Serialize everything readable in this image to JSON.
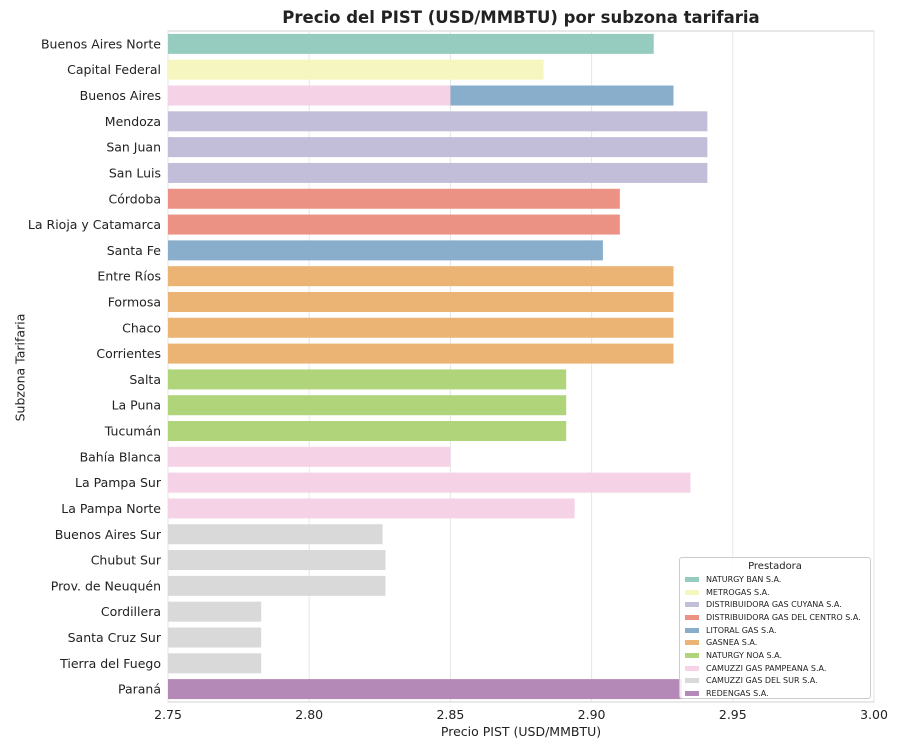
{
  "chart_data": {
    "type": "bar",
    "orientation": "horizontal",
    "title": "Precio del PIST (USD/MMBTU) por subzona tarifaria",
    "xlabel": "Precio PIST (USD/MMBTU)",
    "ylabel": "Subzona Tarifaria",
    "xlim": [
      2.75,
      3.0
    ],
    "xticks": [
      "2.75",
      "2.80",
      "2.85",
      "2.90",
      "2.95",
      "3.00"
    ],
    "grid": true,
    "legend_title": "Prestadora",
    "legend_position": "bottom-right",
    "categories": [
      "Buenos Aires Norte",
      "Capital Federal",
      "Buenos Aires",
      "Mendoza",
      "San Juan",
      "San Luis",
      "Córdoba",
      "La Rioja y Catamarca",
      "Santa Fe",
      "Entre Ríos",
      "Formosa",
      "Chaco",
      "Corrientes",
      "Salta",
      "La Puna",
      "Tucumán",
      "Bahía Blanca",
      "La Pampa Sur",
      "La Pampa Norte",
      "Buenos Aires Sur",
      "Chubut Sur",
      "Prov. de Neuquén",
      "Cordillera",
      "Santa Cruz Sur",
      "Tierra del Fuego",
      "Paraná"
    ],
    "series": [
      {
        "name": "NATURGY BAN S.A.",
        "color": "#96cbc0",
        "points": [
          {
            "category": "Buenos Aires Norte",
            "value": 2.922
          }
        ]
      },
      {
        "name": "METROGAS S.A.",
        "color": "#f6f7c0",
        "points": [
          {
            "category": "Capital Federal",
            "value": 2.883
          }
        ]
      },
      {
        "name": "DISTRIBUIDORA GAS CUYANA S.A.",
        "color": "#c2bdd8",
        "points": [
          {
            "category": "Mendoza",
            "value": 2.941
          },
          {
            "category": "San Juan",
            "value": 2.941
          },
          {
            "category": "San Luis",
            "value": 2.941
          }
        ]
      },
      {
        "name": "DISTRIBUIDORA GAS DEL CENTRO S.A.",
        "color": "#ec9285",
        "points": [
          {
            "category": "Córdoba",
            "value": 2.91
          },
          {
            "category": "La Rioja y Catamarca",
            "value": 2.91
          }
        ]
      },
      {
        "name": "LITORAL GAS S.A.",
        "color": "#89aecb",
        "points": [
          {
            "category": "Buenos Aires",
            "value": 2.929
          },
          {
            "category": "Santa Fe",
            "value": 2.904
          }
        ]
      },
      {
        "name": "GASNEA S.A.",
        "color": "#ebb475",
        "points": [
          {
            "category": "Entre Ríos",
            "value": 2.929
          },
          {
            "category": "Formosa",
            "value": 2.929
          },
          {
            "category": "Chaco",
            "value": 2.929
          },
          {
            "category": "Corrientes",
            "value": 2.929
          }
        ]
      },
      {
        "name": "NATURGY NOA S.A.",
        "color": "#afd47a",
        "points": [
          {
            "category": "Salta",
            "value": 2.891
          },
          {
            "category": "La Puna",
            "value": 2.891
          },
          {
            "category": "Tucumán",
            "value": 2.891
          }
        ]
      },
      {
        "name": "CAMUZZI GAS PAMPEANA S.A.",
        "color": "#f5d2e6",
        "points": [
          {
            "category": "Buenos Aires",
            "value": 2.85
          },
          {
            "category": "Bahía Blanca",
            "value": 2.85
          },
          {
            "category": "La Pampa Sur",
            "value": 2.935
          },
          {
            "category": "La Pampa Norte",
            "value": 2.894
          }
        ]
      },
      {
        "name": "CAMUZZI GAS DEL SUR S.A.",
        "color": "#d9d9d9",
        "points": [
          {
            "category": "Buenos Aires Sur",
            "value": 2.826
          },
          {
            "category": "Chubut Sur",
            "value": 2.827
          },
          {
            "category": "Prov. de Neuquén",
            "value": 2.827
          },
          {
            "category": "Cordillera",
            "value": 2.783
          },
          {
            "category": "Santa Cruz Sur",
            "value": 2.783
          },
          {
            "category": "Tierra del Fuego",
            "value": 2.783
          }
        ]
      },
      {
        "name": "REDENGAS S.A.",
        "color": "#b589b7",
        "points": [
          {
            "category": "Paraná",
            "value": 2.932
          }
        ]
      }
    ]
  }
}
